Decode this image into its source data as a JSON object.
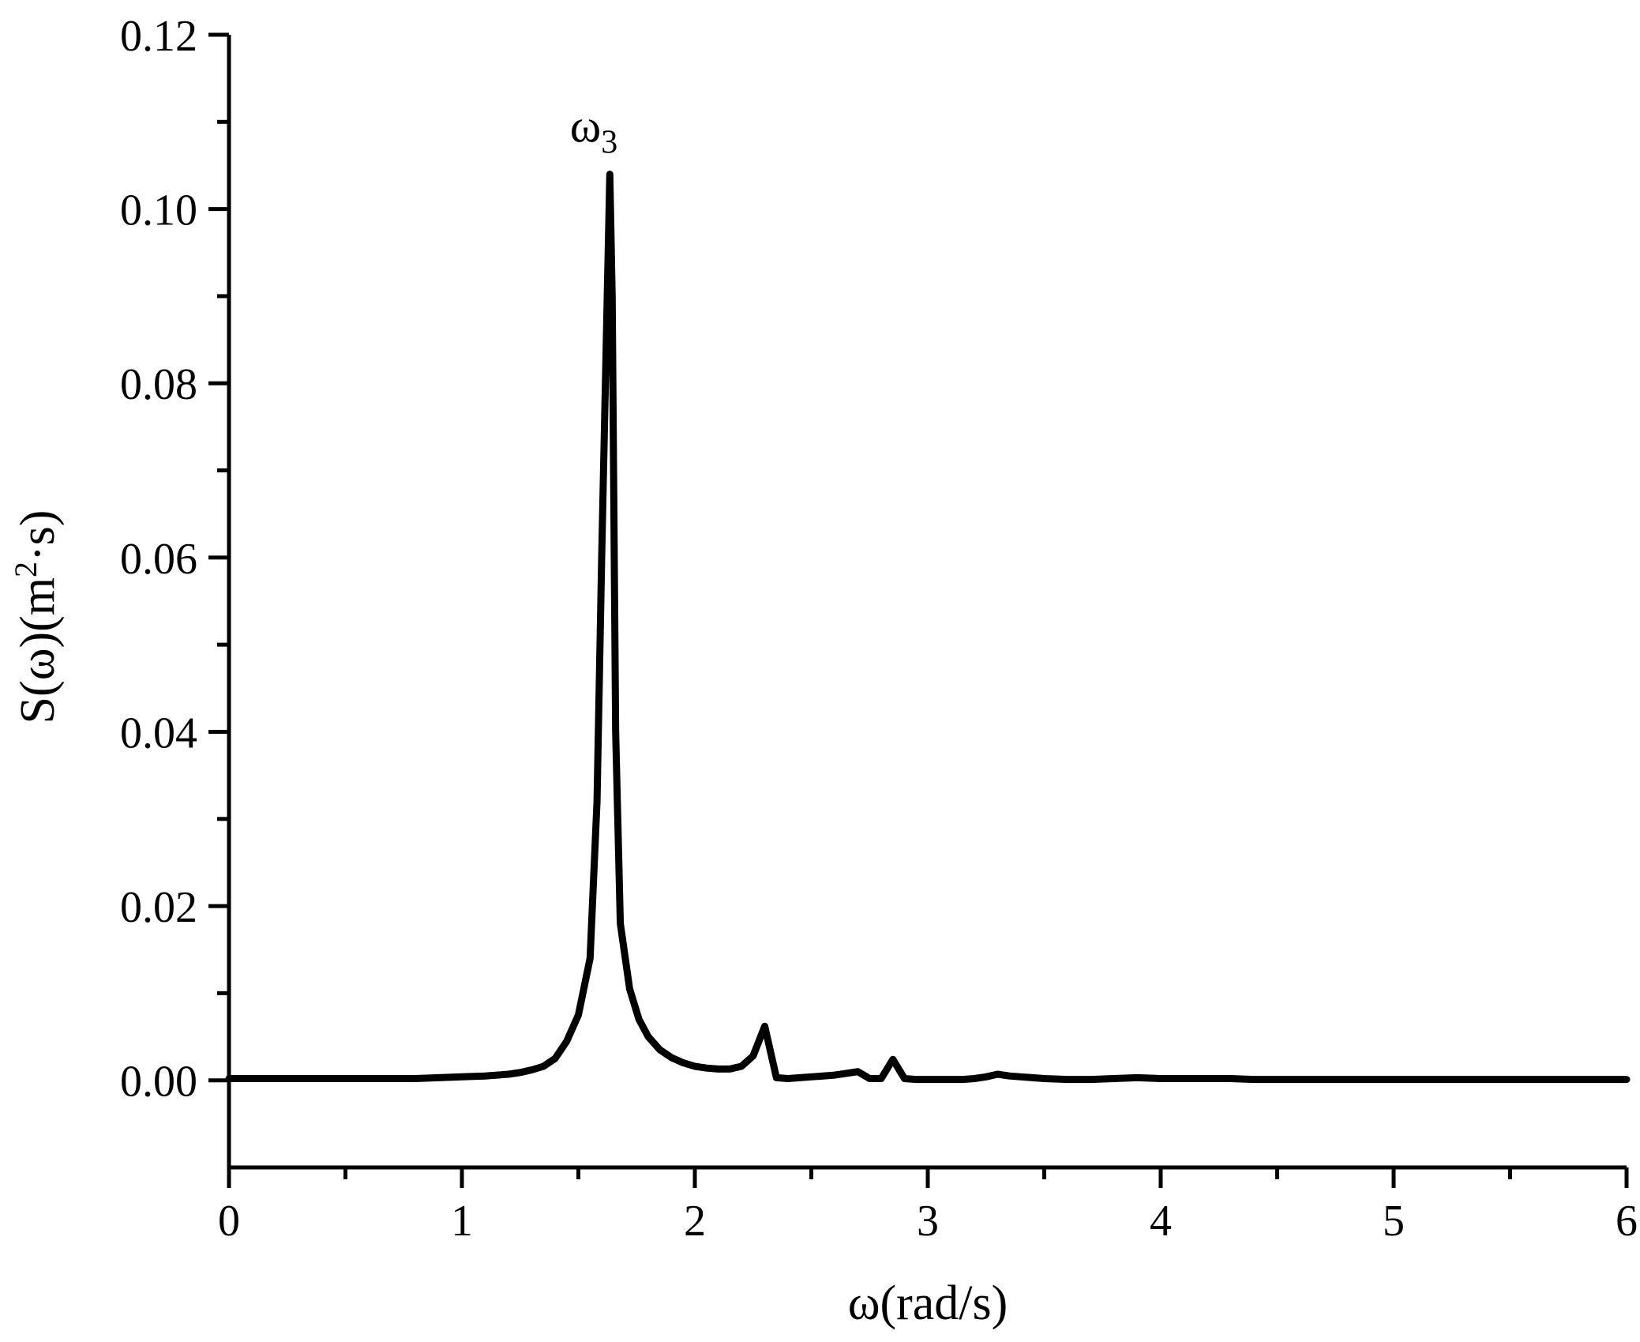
{
  "chart_data": {
    "type": "line",
    "title": "",
    "xlabel": "ω(rad/s)",
    "ylabel_parts": {
      "base": "S(ω)(m",
      "sup": "2",
      "tail": "·s)"
    },
    "xlim": [
      0,
      6
    ],
    "ylim": [
      -0.01,
      0.12
    ],
    "x_ticks": [
      0,
      1,
      2,
      3,
      4,
      5,
      6
    ],
    "x_tick_labels": [
      "0",
      "1",
      "2",
      "3",
      "4",
      "5",
      "6"
    ],
    "x_minor_step": 0.5,
    "y_ticks": [
      0.0,
      0.02,
      0.04,
      0.06,
      0.08,
      0.1,
      0.12
    ],
    "y_tick_labels": [
      "0.00",
      "0.02",
      "0.04",
      "0.06",
      "0.08",
      "0.10",
      "0.12"
    ],
    "y_minor_step": 0.01,
    "grid": false,
    "line_color": "#000000",
    "annotations": [
      {
        "base": "ω",
        "sub": "3",
        "x": 1.65,
        "y": 0.105
      }
    ],
    "series": [
      {
        "x": [
          0,
          0.2,
          0.4,
          0.6,
          0.8,
          0.9,
          1.0,
          1.1,
          1.2,
          1.25,
          1.3,
          1.35,
          1.4,
          1.45,
          1.5,
          1.55,
          1.58,
          1.6,
          1.62,
          1.635,
          1.645,
          1.66,
          1.68,
          1.72,
          1.76,
          1.8,
          1.85,
          1.9,
          1.95,
          2.0,
          2.05,
          2.1,
          2.15,
          2.2,
          2.25,
          2.3,
          2.35,
          2.4,
          2.45,
          2.5,
          2.55,
          2.6,
          2.65,
          2.7,
          2.75,
          2.8,
          2.85,
          2.9,
          2.95,
          3.0,
          3.05,
          3.1,
          3.15,
          3.2,
          3.25,
          3.3,
          3.35,
          3.4,
          3.45,
          3.5,
          3.6,
          3.7,
          3.8,
          3.9,
          4.0,
          4.1,
          4.2,
          4.3,
          4.4,
          4.5,
          4.6,
          4.8,
          5.0,
          5.2,
          5.4,
          5.6,
          5.8,
          6.0
        ],
        "y": [
          0.0002,
          0.0002,
          0.0002,
          0.0002,
          0.0002,
          0.0003,
          0.0004,
          0.0005,
          0.0007,
          0.0009,
          0.0012,
          0.0016,
          0.0025,
          0.0045,
          0.0075,
          0.014,
          0.032,
          0.06,
          0.085,
          0.104,
          0.09,
          0.04,
          0.018,
          0.0105,
          0.007,
          0.005,
          0.0035,
          0.0026,
          0.002,
          0.0016,
          0.0014,
          0.0013,
          0.0013,
          0.0016,
          0.0028,
          0.0062,
          0.0003,
          0.0002,
          0.0003,
          0.0004,
          0.0005,
          0.0006,
          0.0008,
          0.001,
          0.0002,
          0.0002,
          0.0024,
          0.0002,
          0.0001,
          0.0001,
          0.0001,
          0.0001,
          0.0001,
          0.0002,
          0.0004,
          0.0007,
          0.0005,
          0.0004,
          0.0003,
          0.0002,
          0.0001,
          0.0001,
          0.0002,
          0.0003,
          0.0002,
          0.0002,
          0.0002,
          0.0002,
          0.0001,
          0.0001,
          0.0001,
          0.0001,
          0.0001,
          0.0001,
          0.0001,
          0.0001,
          0.0001,
          0.0001
        ]
      }
    ]
  }
}
